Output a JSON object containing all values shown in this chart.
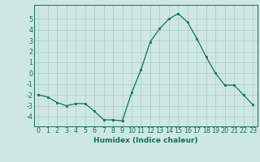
{
  "x": [
    0,
    1,
    2,
    3,
    4,
    5,
    6,
    7,
    8,
    9,
    10,
    11,
    12,
    13,
    14,
    15,
    16,
    17,
    18,
    19,
    20,
    21,
    22,
    23
  ],
  "y": [
    -2.0,
    -2.2,
    -2.7,
    -3.0,
    -2.8,
    -2.8,
    -3.5,
    -4.3,
    -4.3,
    -4.4,
    -1.8,
    0.3,
    2.9,
    4.1,
    5.0,
    5.5,
    4.7,
    3.2,
    1.5,
    0.0,
    -1.1,
    -1.1,
    -2.0,
    -2.9
  ],
  "line_color": "#1a6b5a",
  "marker_color": "#1a6b5a",
  "bg_color": "#cde8e4",
  "grid_color": "#aecfcb",
  "xlabel": "Humidex (Indice chaleur)",
  "xlim": [
    -0.5,
    23.5
  ],
  "ylim": [
    -4.9,
    6.3
  ],
  "yticks": [
    -4,
    -3,
    -2,
    -1,
    0,
    1,
    2,
    3,
    4,
    5
  ],
  "xticks": [
    0,
    1,
    2,
    3,
    4,
    5,
    6,
    7,
    8,
    9,
    10,
    11,
    12,
    13,
    14,
    15,
    16,
    17,
    18,
    19,
    20,
    21,
    22,
    23
  ],
  "tick_color": "#1a6b5a",
  "label_fontsize": 6.5,
  "tick_fontsize": 5.8,
  "linewidth": 0.9,
  "markersize": 2.0
}
